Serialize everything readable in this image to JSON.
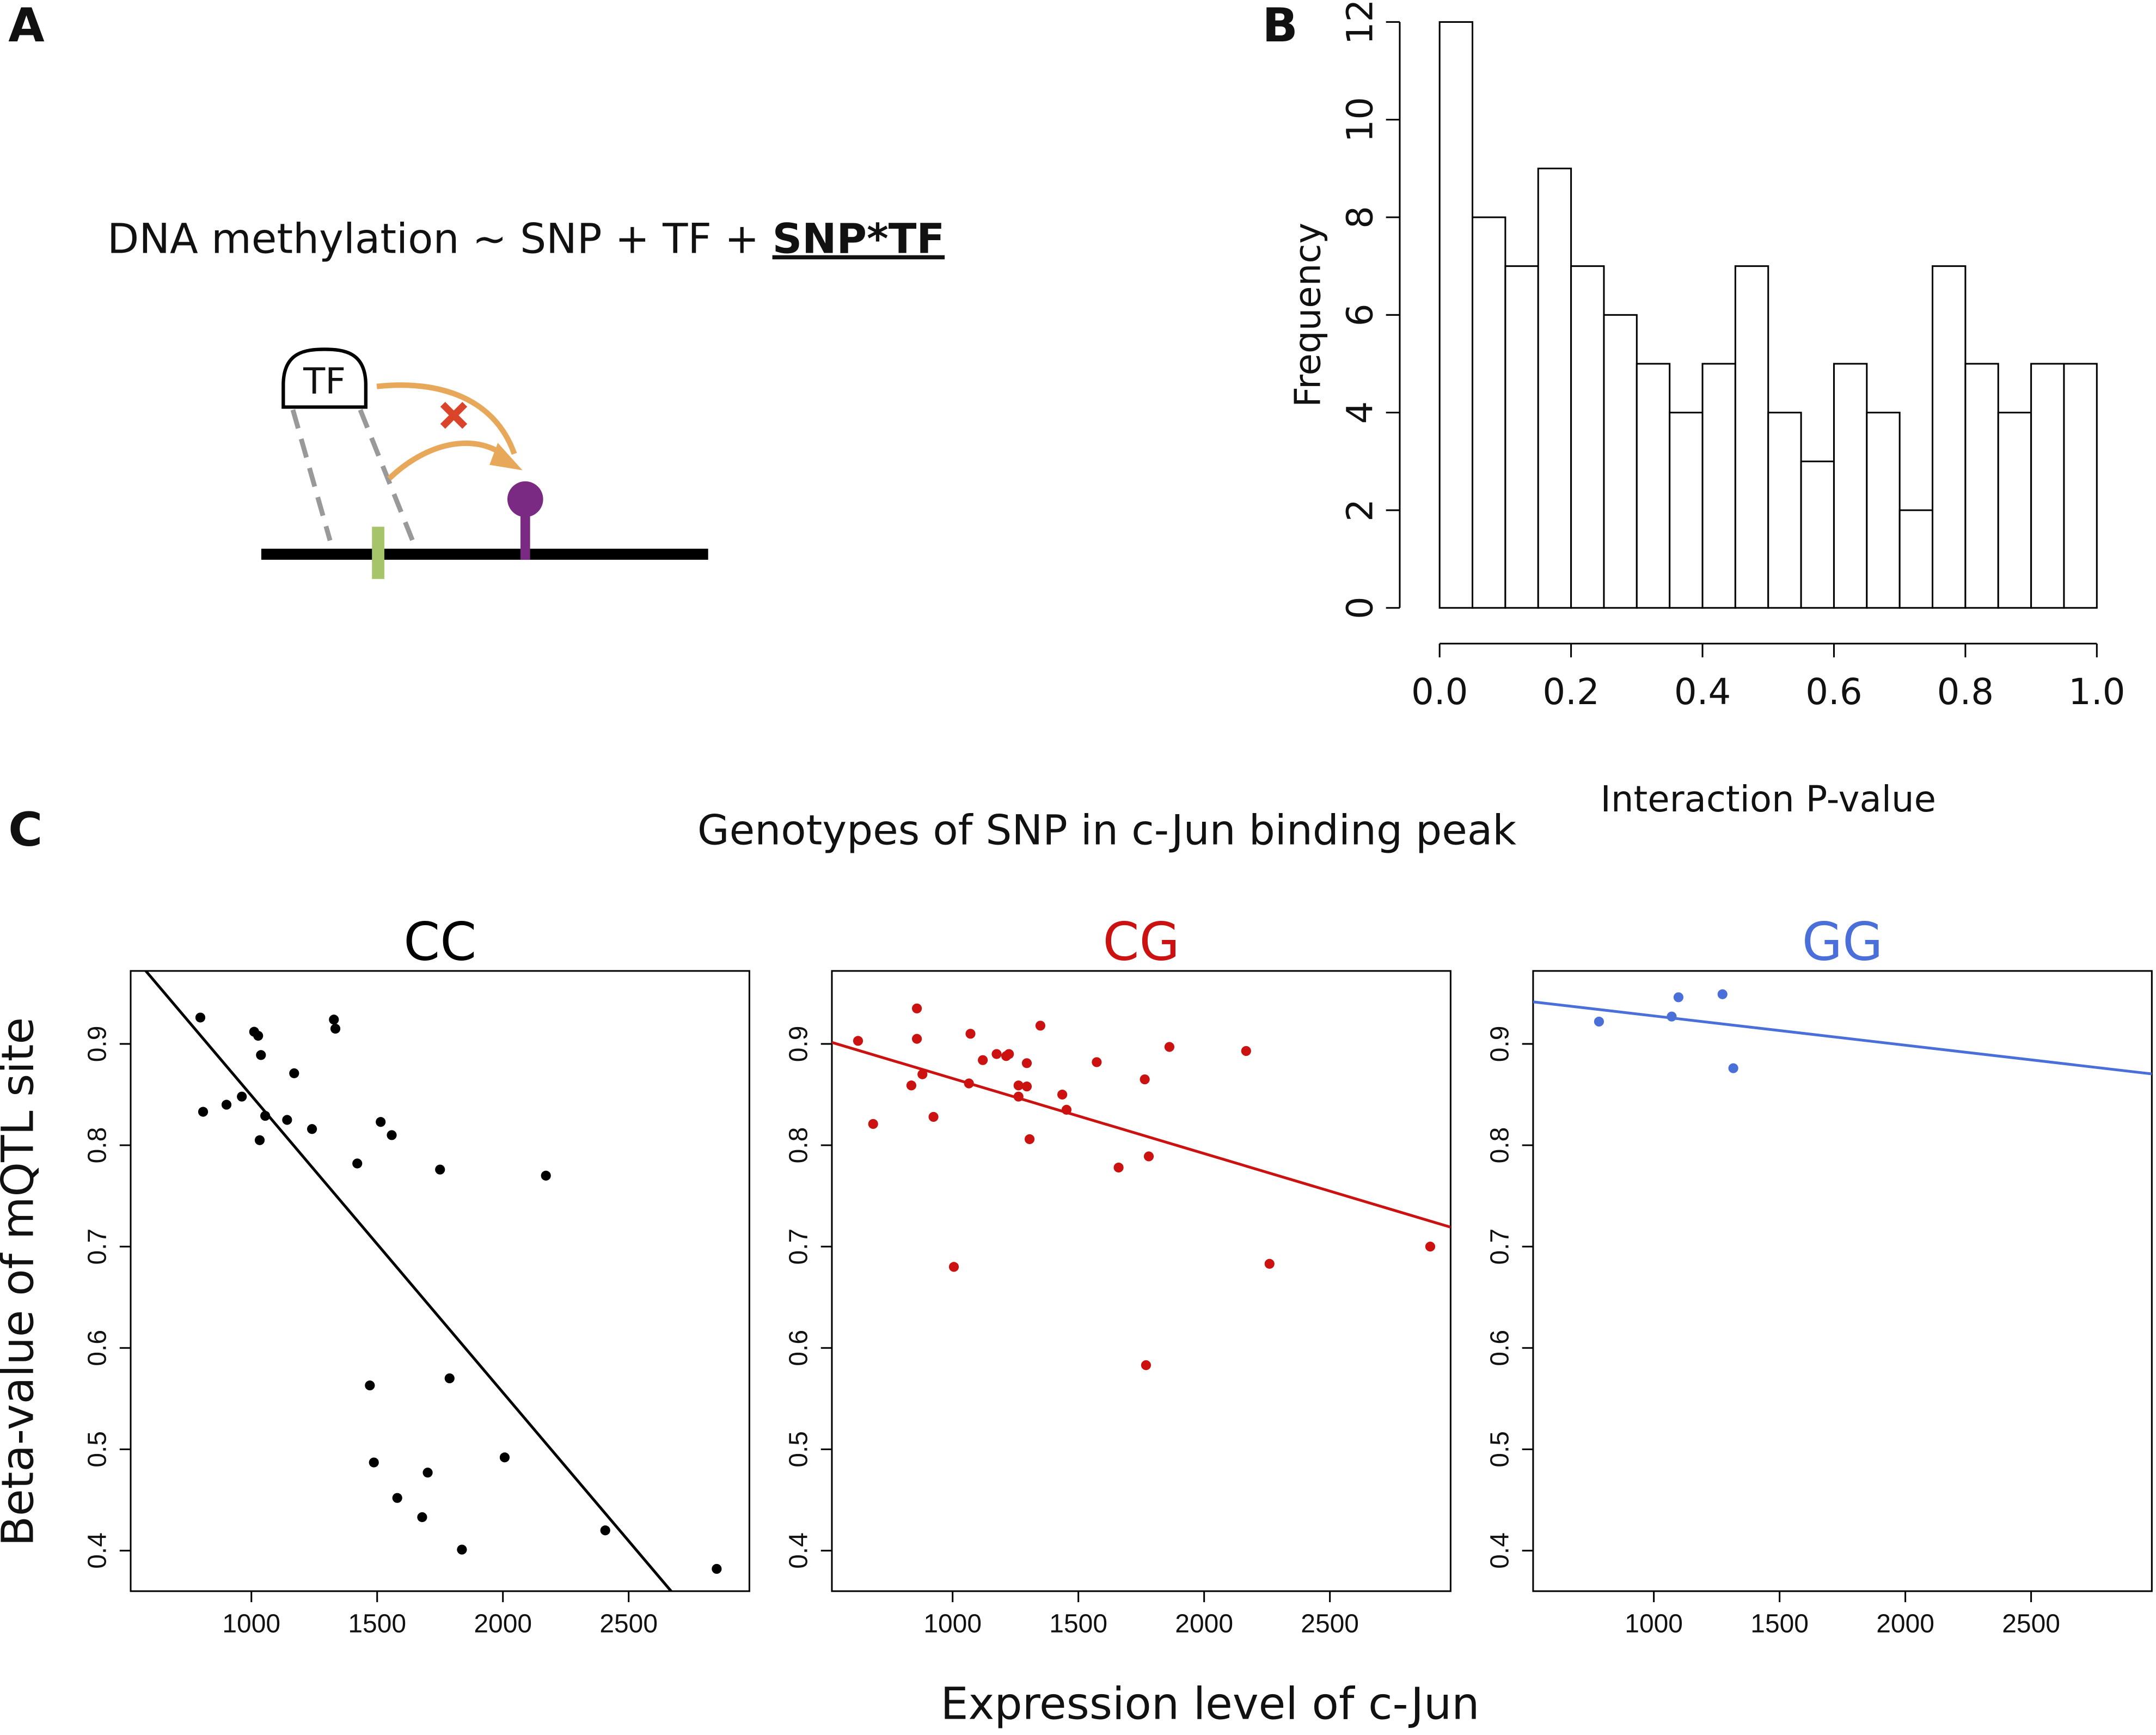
{
  "panel_labels": [
    "A",
    "B",
    "C"
  ],
  "diagram": {
    "formula": "DNA methylation ~ SNP + TF + ",
    "formula_bold": "SNP*TF",
    "tf_label": "TF"
  },
  "panel_c": {
    "title": "Genotypes of SNP in c-Jun binding peak",
    "ylabel": "Beta-value of mQTL site",
    "xlabel": "Expression level of c-Jun"
  },
  "chart_data": [
    {
      "type": "histogram",
      "ylabel": "Frequency",
      "xlabel": "Interaction P-value",
      "bins": [
        0,
        0.05,
        0.1,
        0.15,
        0.2,
        0.25,
        0.3,
        0.35,
        0.4,
        0.45,
        0.5,
        0.55,
        0.6,
        0.65,
        0.7,
        0.75,
        0.8,
        0.85,
        0.9,
        0.95,
        1
      ],
      "values": [
        12,
        8,
        7,
        9,
        7,
        6,
        5,
        4,
        5,
        7,
        4,
        3,
        5,
        4,
        2,
        7,
        5,
        4,
        5,
        5
      ],
      "xlim": [
        0,
        1
      ],
      "xticks": [
        {
          "value": 0,
          "label": "0.0"
        },
        {
          "value": 0.2,
          "label": "0.2"
        },
        {
          "value": 0.4,
          "label": "0.4"
        },
        {
          "value": 0.6,
          "label": "0.6"
        },
        {
          "value": 0.8,
          "label": "0.8"
        },
        {
          "value": 1,
          "label": "1.0"
        }
      ],
      "ylim": [
        0,
        12
      ],
      "yticks": [
        0,
        2,
        4,
        6,
        8,
        10,
        12
      ],
      "color": "#ffffff"
    },
    {
      "type": "scatter",
      "title": "CC",
      "color": "#000000",
      "x": [
        797,
        808,
        901,
        962,
        1011,
        1027,
        1038,
        1033,
        1055,
        1142,
        1170,
        1241,
        1328,
        1334,
        1421,
        1514,
        1558,
        1750,
        2171,
        1471,
        1788,
        1487,
        1580,
        1701,
        1679,
        1837,
        2007,
        2407,
        2850
      ],
      "values": [
        0.926,
        0.833,
        0.84,
        0.848,
        0.912,
        0.908,
        0.889,
        0.805,
        0.829,
        0.825,
        0.871,
        0.816,
        0.924,
        0.915,
        0.782,
        0.823,
        0.81,
        0.776,
        0.77,
        0.563,
        0.57,
        0.487,
        0.452,
        0.477,
        0.433,
        0.401,
        0.492,
        0.42,
        0.382
      ],
      "fit": {
        "intercept": 1.142,
        "slope": -0.000293
      },
      "xlim": [
        520,
        2980
      ],
      "xticks": [
        1000,
        1500,
        2000,
        2500
      ],
      "ylim": [
        0.36,
        0.972
      ],
      "yticks": [
        0.4,
        0.5,
        0.6,
        0.7,
        0.8,
        0.9
      ]
    },
    {
      "type": "scatter",
      "title": "CG",
      "color": "#cc1111",
      "x": [
        624,
        684,
        858,
        858,
        836,
        880,
        924,
        1005,
        1071,
        1065,
        1120,
        1175,
        1213,
        1224,
        1262,
        1262,
        1295,
        1295,
        1306,
        1349,
        1436,
        1453,
        1573,
        1660,
        1764,
        1780,
        1769,
        1862,
        2167,
        2260,
        2899
      ],
      "values": [
        0.903,
        0.821,
        0.935,
        0.905,
        0.859,
        0.87,
        0.828,
        0.68,
        0.91,
        0.861,
        0.884,
        0.89,
        0.888,
        0.89,
        0.848,
        0.859,
        0.881,
        0.858,
        0.806,
        0.918,
        0.85,
        0.835,
        0.882,
        0.778,
        0.865,
        0.789,
        0.583,
        0.897,
        0.893,
        0.683,
        0.7
      ],
      "fit": {
        "intercept": 0.94,
        "slope": -7.41e-05
      },
      "xlim": [
        520,
        2980
      ],
      "xticks": [
        1000,
        1500,
        2000,
        2500
      ],
      "ylim": [
        0.36,
        0.972
      ],
      "yticks": [
        0.4,
        0.5,
        0.6,
        0.7,
        0.8,
        0.9
      ]
    },
    {
      "type": "scatter",
      "title": "GG",
      "color": "#4a6fd8",
      "x": [
        782,
        1071,
        1098,
        1273,
        1316
      ],
      "values": [
        0.922,
        0.927,
        0.946,
        0.949,
        0.876
      ],
      "fit": {
        "intercept": 0.9565,
        "slope": -2.89e-05
      },
      "xlim": [
        520,
        2980
      ],
      "xticks": [
        1000,
        1500,
        2000,
        2500
      ],
      "ylim": [
        0.36,
        0.972
      ],
      "yticks": [
        0.4,
        0.5,
        0.6,
        0.7,
        0.8,
        0.9
      ]
    }
  ]
}
